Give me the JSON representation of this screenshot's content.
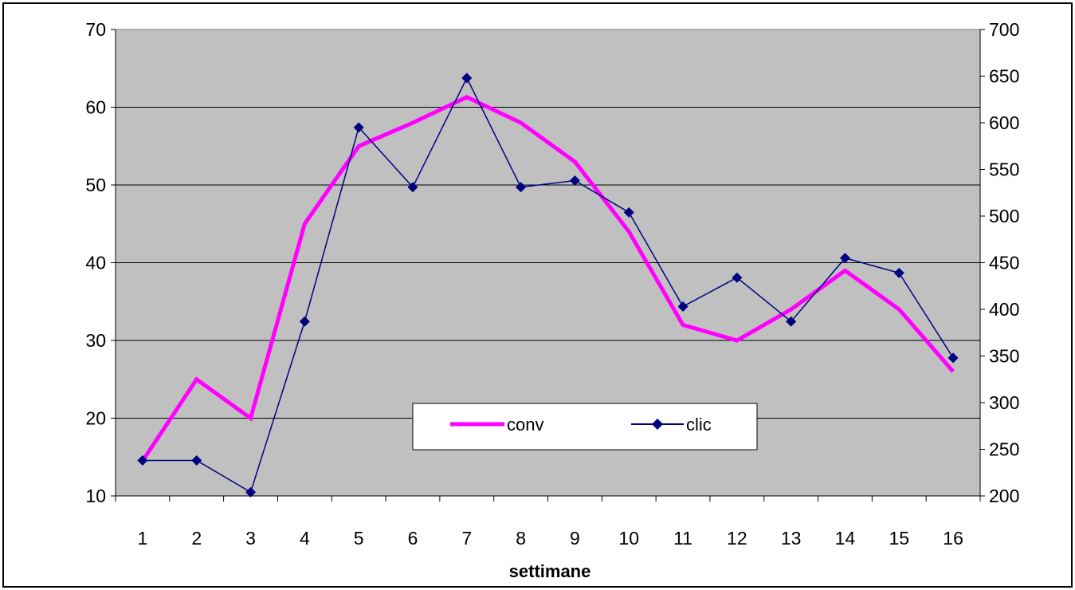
{
  "chart_data": {
    "type": "line",
    "xlabel": "settimane",
    "categories": [
      "1",
      "2",
      "3",
      "4",
      "5",
      "6",
      "7",
      "8",
      "9",
      "10",
      "11",
      "12",
      "13",
      "14",
      "15",
      "16"
    ],
    "y_left": {
      "min": 10,
      "max": 70,
      "ticks": [
        "10",
        "20",
        "30",
        "40",
        "50",
        "60",
        "70"
      ]
    },
    "y_right": {
      "min": 200,
      "max": 700,
      "ticks": [
        "200",
        "250",
        "300",
        "350",
        "400",
        "450",
        "500",
        "550",
        "600",
        "650",
        "700"
      ]
    },
    "series": [
      {
        "name": "conv",
        "axis": "left",
        "color": "#ff00ff",
        "marker": "none",
        "values": [
          14.5,
          25,
          20,
          45,
          55,
          58,
          61.3,
          58,
          53,
          44,
          32,
          30,
          34,
          39,
          34,
          26
        ]
      },
      {
        "name": "clic",
        "axis": "right",
        "color": "#000080",
        "marker": "diamond",
        "values": [
          238,
          238,
          204,
          387,
          595,
          531,
          648,
          531,
          538,
          504,
          403,
          434,
          387,
          455,
          439,
          348
        ]
      }
    ],
    "plot_background": "#c0c0c0",
    "grid": true,
    "legend_position": "center-bottom"
  }
}
